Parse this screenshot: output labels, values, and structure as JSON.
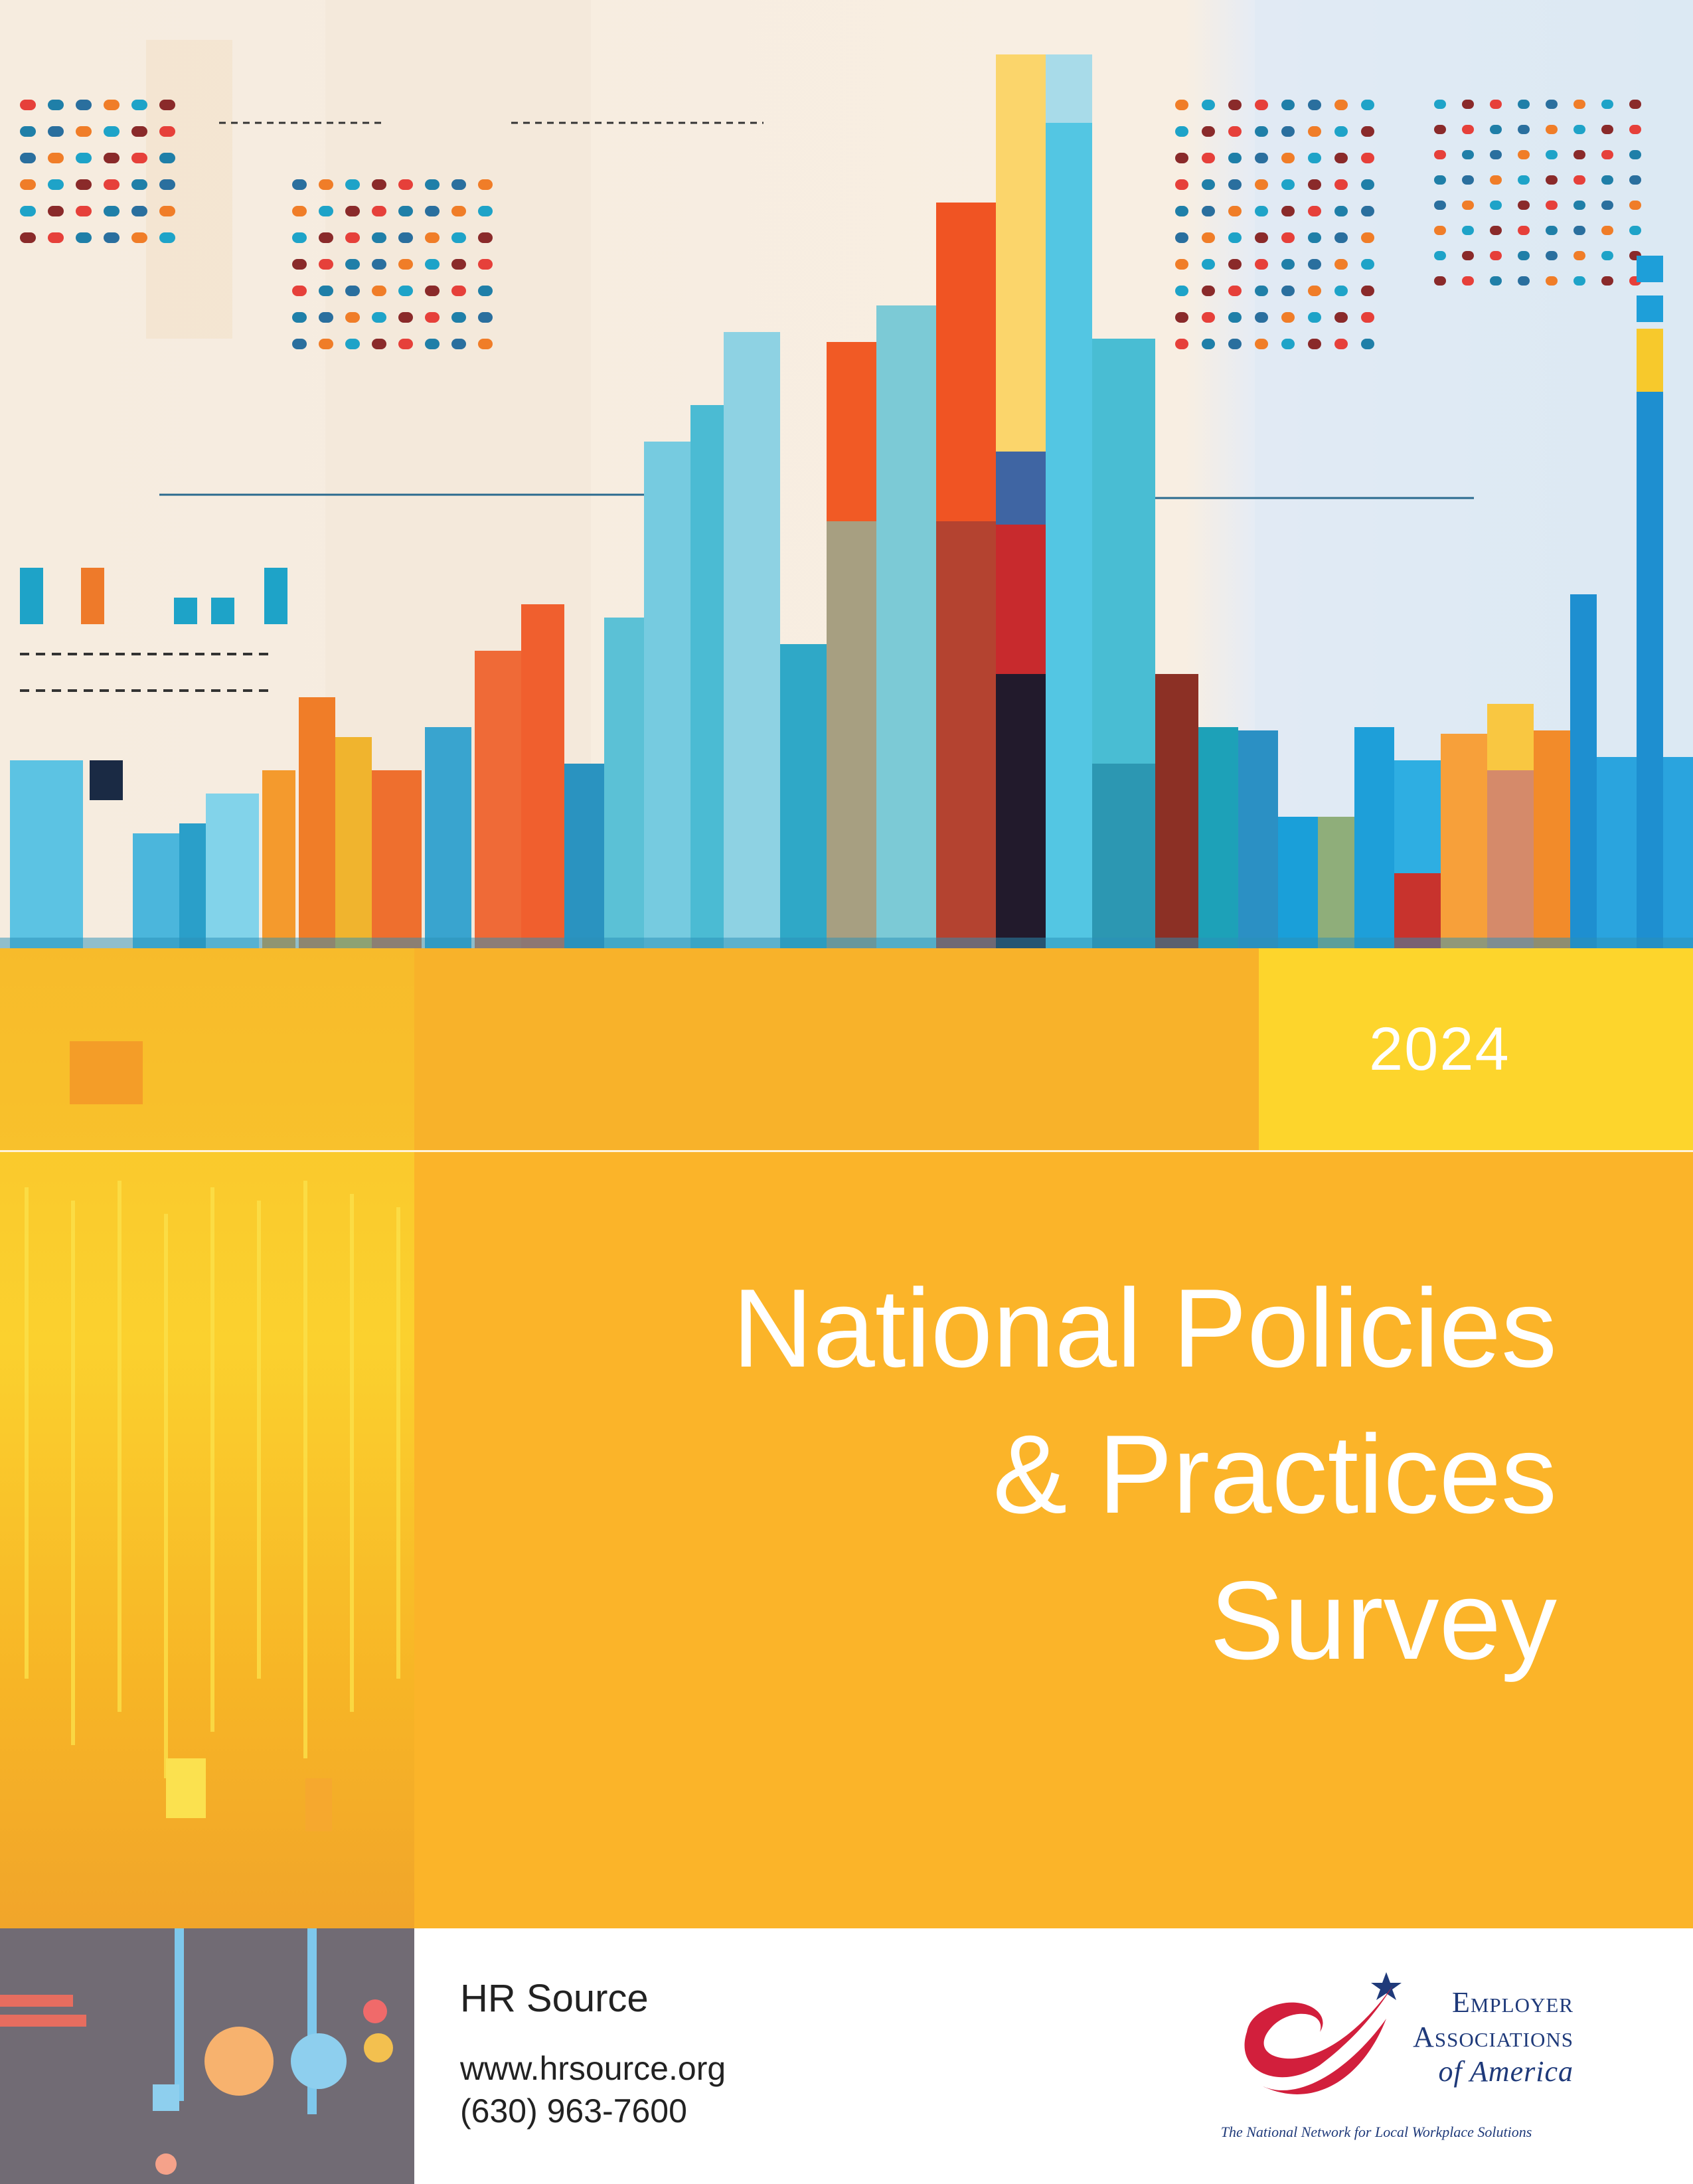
{
  "cover": {
    "year": "2024",
    "title_lines": [
      "National Policies",
      "& Practices",
      "Survey"
    ]
  },
  "publisher": {
    "name": "HR Source",
    "website": "www.hrsource.org",
    "phone": "(630) 963-7600"
  },
  "partner_logo": {
    "line1": "Employer",
    "line2": "Associations",
    "line3": "of America",
    "tagline": "The National Network for Local Workplace Solutions"
  },
  "palette": {
    "band": "#fbb429",
    "year_block": "#fdd52c",
    "logo_red": "#d21f3c",
    "logo_navy": "#1f3a7a"
  }
}
